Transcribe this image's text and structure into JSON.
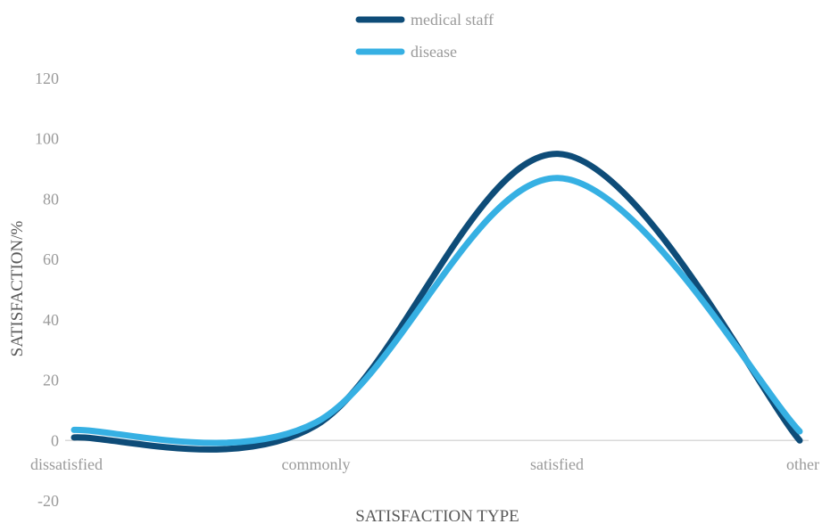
{
  "chart_data": {
    "type": "line",
    "smooth": true,
    "title": "",
    "xlabel": "SATISFACTION TYPE",
    "ylabel": "SATISFACTION/%",
    "categories": [
      "dissatisfied",
      "commonly",
      "satisfied",
      "other"
    ],
    "ylim": [
      -20,
      120
    ],
    "yticks": [
      -20,
      0,
      20,
      40,
      60,
      80,
      100,
      120
    ],
    "grid": false,
    "legend_position": "top-center",
    "series": [
      {
        "name": "medical staff",
        "color": "#0e4c78",
        "values": [
          1,
          5,
          95,
          0
        ]
      },
      {
        "name": "disease",
        "color": "#36b0e3",
        "values": [
          3.5,
          6,
          87,
          3
        ]
      }
    ]
  }
}
